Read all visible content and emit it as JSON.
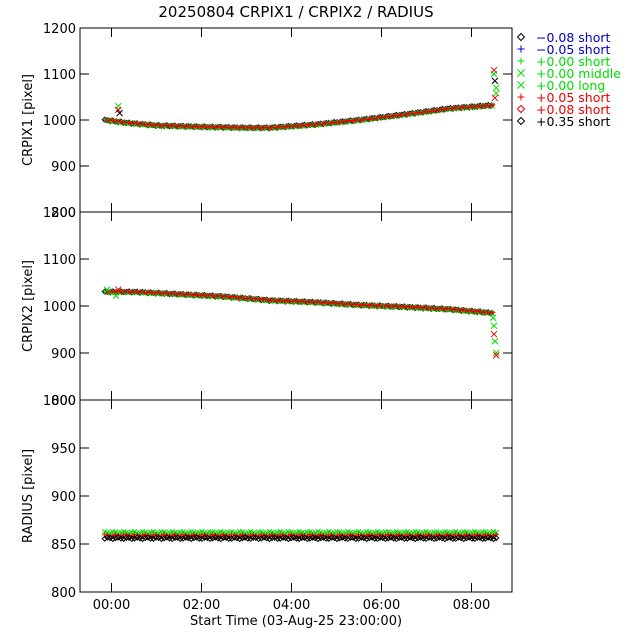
{
  "title": "20250804 CRPIX1 / CRPIX2 / RADIUS",
  "xlabel": "Start Time (03-Aug-25 23:00:00)",
  "colors": {
    "black": "#000000",
    "blue": "#0000cc",
    "green": "#00dd00",
    "red": "#ee0000"
  },
  "legend": [
    {
      "symbol": "diamond",
      "label": "−0.08 short",
      "color": "#000000",
      "text_color": "#0000cc"
    },
    {
      "symbol": "plus",
      "label": "−0.05 short",
      "color": "#0000cc",
      "text_color": "#0000cc"
    },
    {
      "symbol": "plus",
      "label": "+0.00 short",
      "color": "#00dd00",
      "text_color": "#00dd00"
    },
    {
      "symbol": "cross",
      "label": "+0.00 middle",
      "color": "#00dd00",
      "text_color": "#00dd00"
    },
    {
      "symbol": "cross",
      "label": "+0.00 long",
      "color": "#00dd00",
      "text_color": "#00dd00"
    },
    {
      "symbol": "plus",
      "label": "+0.05 short",
      "color": "#ee0000",
      "text_color": "#ee0000"
    },
    {
      "symbol": "diamond",
      "label": "+0.08 short",
      "color": "#ee0000",
      "text_color": "#ee0000"
    },
    {
      "symbol": "diamond",
      "label": "+0.35 short",
      "color": "#000000",
      "text_color": "#000000"
    }
  ],
  "chart_data": [
    {
      "type": "scatter",
      "ylabel": "CRPIX1 [pixel]",
      "xlim": [
        -0.7,
        8.9
      ],
      "ylim": [
        800,
        1200
      ],
      "yticks": [
        800,
        900,
        1000,
        1100,
        1200
      ],
      "xticks": [
        0,
        2,
        4,
        6,
        8
      ],
      "xtick_labels": [
        "",
        "",
        "",
        "",
        ""
      ],
      "trend": [
        [
          -0.15,
          1000
        ],
        [
          0.3,
          994
        ],
        [
          1,
          988
        ],
        [
          2,
          985
        ],
        [
          3,
          983
        ],
        [
          3.5,
          983
        ],
        [
          4.5,
          990
        ],
        [
          5.5,
          1000
        ],
        [
          6.5,
          1012
        ],
        [
          7.5,
          1025
        ],
        [
          8.45,
          1032
        ]
      ],
      "outliers": [
        {
          "x": 0.15,
          "y": 1030,
          "color": "#00dd00"
        },
        {
          "x": 0.15,
          "y": 1022,
          "color": "#ee0000"
        },
        {
          "x": 0.18,
          "y": 1015,
          "color": "#000000"
        },
        {
          "x": 8.5,
          "y": 1108,
          "color": "#ee0000"
        },
        {
          "x": 8.5,
          "y": 1100,
          "color": "#00dd00"
        },
        {
          "x": 8.52,
          "y": 1085,
          "color": "#000000"
        },
        {
          "x": 8.55,
          "y": 1070,
          "color": "#00dd00"
        },
        {
          "x": 8.55,
          "y": 1058,
          "color": "#00dd00"
        },
        {
          "x": 8.52,
          "y": 1048,
          "color": "#ee0000"
        }
      ]
    },
    {
      "type": "scatter",
      "ylabel": "CRPIX2 [pixel]",
      "xlim": [
        -0.7,
        8.9
      ],
      "ylim": [
        800,
        1200
      ],
      "yticks": [
        800,
        900,
        1000,
        1100,
        1200
      ],
      "xticks": [
        0,
        2,
        4,
        6,
        8
      ],
      "xtick_labels": [
        "",
        "",
        "",
        "",
        ""
      ],
      "trend": [
        [
          -0.15,
          1030
        ],
        [
          0.5,
          1030
        ],
        [
          1.5,
          1025
        ],
        [
          2.5,
          1020
        ],
        [
          3.5,
          1012
        ],
        [
          4.5,
          1008
        ],
        [
          5.5,
          1002
        ],
        [
          6.5,
          998
        ],
        [
          7.5,
          993
        ],
        [
          8.45,
          985
        ]
      ],
      "outliers": [
        {
          "x": 0.1,
          "y": 1022,
          "color": "#00dd00"
        },
        {
          "x": 0.15,
          "y": 1035,
          "color": "#ee0000"
        },
        {
          "x": -0.1,
          "y": 1035,
          "color": "#00dd00"
        },
        {
          "x": 8.48,
          "y": 975,
          "color": "#00dd00"
        },
        {
          "x": 8.5,
          "y": 958,
          "color": "#00dd00"
        },
        {
          "x": 8.5,
          "y": 940,
          "color": "#ee0000"
        },
        {
          "x": 8.52,
          "y": 925,
          "color": "#00dd00"
        },
        {
          "x": 8.55,
          "y": 900,
          "color": "#00dd00"
        },
        {
          "x": 8.55,
          "y": 895,
          "color": "#ee0000"
        }
      ]
    },
    {
      "type": "scatter",
      "ylabel": "RADIUS [pixel]",
      "xlim": [
        -0.7,
        8.9
      ],
      "ylim": [
        800,
        1000
      ],
      "yticks": [
        800,
        850,
        900,
        950,
        1000
      ],
      "xticks": [
        0,
        2,
        4,
        6,
        8
      ],
      "xtick_labels": [
        "00:00",
        "02:00",
        "04:00",
        "06:00",
        "08:00"
      ],
      "bands": [
        {
          "y": 862,
          "color": "#00dd00",
          "symbol": "cross"
        },
        {
          "y": 859,
          "color": "#ee0000",
          "symbol": "plus"
        },
        {
          "y": 856,
          "color": "#000000",
          "symbol": "diamond"
        }
      ],
      "outliers": []
    }
  ]
}
